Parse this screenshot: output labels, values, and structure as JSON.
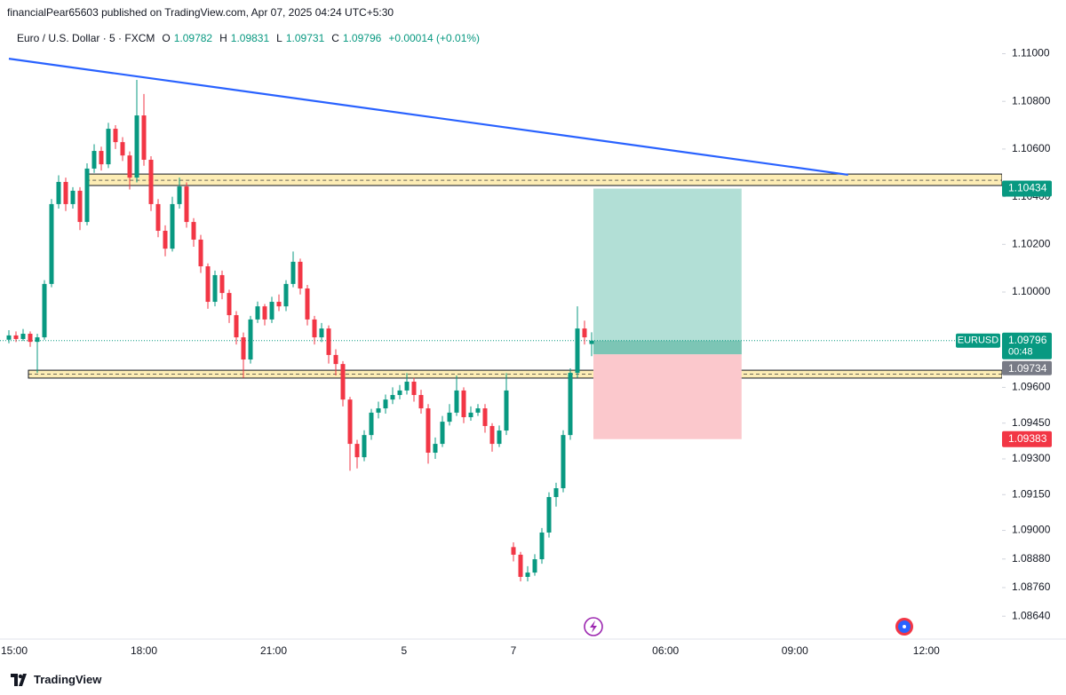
{
  "header": "financialPear65603 published on TradingView.com, Apr 07, 2025 04:24 UTC+5:30",
  "footer": "TradingView",
  "chart_data": {
    "type": "candlestick",
    "symbol": "Euro / U.S. Dollar · 5 · FXCM",
    "ohlc_labels": [
      "O",
      "H",
      "L",
      "C"
    ],
    "change": "+0.00014 (+0.01%)",
    "colors": {
      "up": "#089981",
      "down": "#f23645"
    },
    "open": [
      1.098,
      1.09818,
      1.09803,
      1.09825,
      1.09791,
      1.0981,
      1.10034,
      1.10369,
      1.10462,
      1.10369,
      1.10425,
      1.10294,
      1.10518,
      1.10592,
      1.10536,
      1.10685,
      1.10629,
      1.10573,
      1.1048,
      1.10741,
      1.10555,
      1.10369,
      1.10257,
      1.10182,
      1.10369,
      1.10443,
      1.10294,
      1.1022,
      1.10108,
      1.09959,
      1.10071,
      1.09996,
      1.09903,
      1.0981,
      1.09717,
      1.09885,
      1.0994,
      1.09885,
      1.09959,
      1.0994,
      1.10034,
      1.10127,
      1.10015,
      1.09885,
      1.0981,
      1.09847,
      1.09736,
      1.09698,
      1.09549,
      1.09363,
      1.09307,
      1.094,
      1.09494,
      1.09512,
      1.09549,
      1.09568,
      1.09587,
      1.09624,
      1.09568,
      1.09512,
      1.09326,
      1.09363,
      1.09456,
      1.09494,
      1.09587,
      1.09475,
      1.09494,
      1.09512,
      1.09438,
      1.09363,
      1.09419,
      1.0893,
      1.08898,
      1.08805,
      1.08823,
      1.08879,
      1.08991,
      1.0914,
      1.09177,
      1.094,
      1.09661,
      1.09847,
      1.09782
    ],
    "high": [
      1.0984,
      1.09835,
      1.09845,
      1.09835,
      1.09825,
      1.1005,
      1.1039,
      1.1049,
      1.1048,
      1.1044,
      1.1044,
      1.1054,
      1.1062,
      1.1061,
      1.1071,
      1.107,
      1.1065,
      1.1059,
      1.1089,
      1.10831,
      1.1057,
      1.1039,
      1.1028,
      1.104,
      1.1048,
      1.1046,
      1.1031,
      1.1024,
      1.1012,
      1.1009,
      1.1009,
      1.1001,
      1.0992,
      1.0983,
      1.099,
      1.0996,
      1.0995,
      1.0998,
      1.0999,
      1.1005,
      1.1017,
      1.1014,
      1.1003,
      1.099,
      1.0987,
      1.0986,
      1.0976,
      1.0971,
      1.0956,
      1.0938,
      1.0942,
      1.0951,
      1.0954,
      1.0957,
      1.096,
      1.0961,
      1.0966,
      1.0964,
      1.0959,
      1.0953,
      1.0939,
      1.0948,
      1.0953,
      1.0965,
      1.096,
      1.0952,
      1.0953,
      1.0953,
      1.0945,
      1.0944,
      1.0966,
      1.0895,
      1.0891,
      1.0885,
      1.089,
      1.0901,
      1.0916,
      1.092,
      1.0942,
      1.0968,
      1.0994,
      1.0988,
      1.09831
    ],
    "low": [
      1.09785,
      1.0979,
      1.09795,
      1.0977,
      1.09661,
      1.098,
      1.1002,
      1.1035,
      1.1034,
      1.1035,
      1.1026,
      1.1028,
      1.105,
      1.1051,
      1.1052,
      1.106,
      1.1055,
      1.1043,
      1.1046,
      1.1053,
      1.1034,
      1.1023,
      1.1015,
      1.1017,
      1.1035,
      1.1027,
      1.1019,
      1.1008,
      1.0993,
      1.0994,
      1.0997,
      1.0987,
      1.0978,
      1.0964,
      1.097,
      1.0987,
      1.0986,
      1.0987,
      1.0992,
      1.0992,
      1.1002,
      1.0999,
      1.0986,
      1.0978,
      1.0979,
      1.097,
      1.0965,
      1.0952,
      1.0925,
      1.0926,
      1.0929,
      1.0938,
      1.0947,
      1.0949,
      1.0953,
      1.0955,
      1.0957,
      1.0954,
      1.0949,
      1.0928,
      1.093,
      1.0935,
      1.0944,
      1.0948,
      1.0945,
      1.0946,
      1.0948,
      1.0941,
      1.0933,
      1.0935,
      1.094,
      1.0887,
      1.08786,
      1.08786,
      1.0881,
      1.0886,
      1.0897,
      1.091,
      1.0916,
      1.0938,
      1.0964,
      1.0978,
      1.09731
    ],
    "close": [
      1.09818,
      1.09803,
      1.09825,
      1.09791,
      1.0981,
      1.10034,
      1.10369,
      1.10462,
      1.10369,
      1.10425,
      1.10294,
      1.10518,
      1.10592,
      1.10536,
      1.10685,
      1.10629,
      1.10573,
      1.1048,
      1.10741,
      1.10555,
      1.10369,
      1.10257,
      1.10182,
      1.10369,
      1.10443,
      1.10294,
      1.1022,
      1.10108,
      1.09959,
      1.10071,
      1.09996,
      1.09903,
      1.0981,
      1.09717,
      1.09885,
      1.0994,
      1.09885,
      1.09959,
      1.0994,
      1.10034,
      1.10127,
      1.10015,
      1.09885,
      1.0981,
      1.09847,
      1.09736,
      1.09698,
      1.09549,
      1.09363,
      1.09307,
      1.094,
      1.09494,
      1.09512,
      1.09549,
      1.09568,
      1.09587,
      1.09624,
      1.09568,
      1.09512,
      1.09326,
      1.09363,
      1.09456,
      1.09494,
      1.09587,
      1.09475,
      1.09494,
      1.09512,
      1.09438,
      1.09363,
      1.09419,
      1.09587,
      1.08898,
      1.08805,
      1.08823,
      1.08879,
      1.08991,
      1.0914,
      1.09177,
      1.094,
      1.09661,
      1.09847,
      1.0981,
      1.09796
    ],
    "xlim": [
      -1.25,
      139.75
    ],
    "xticks": [
      {
        "value": 0.75,
        "label": "15:00"
      },
      {
        "value": 19,
        "label": "18:00"
      },
      {
        "value": 37.25,
        "label": "21:00"
      },
      {
        "value": 55.6,
        "label": "5"
      },
      {
        "value": 71,
        "label": "7"
      },
      {
        "value": 92.4,
        "label": "06:00"
      },
      {
        "value": 110.6,
        "label": "09:00"
      },
      {
        "value": 129.1,
        "label": "12:00"
      }
    ],
    "ylim": [
      1.08544,
      1.11121
    ],
    "yticks": [
      {
        "value": 1.11,
        "label": "1.11000"
      },
      {
        "value": 1.108,
        "label": "1.10800"
      },
      {
        "value": 1.106,
        "label": "1.10600"
      },
      {
        "value": 1.104,
        "label": "1.10400"
      },
      {
        "value": 1.102,
        "label": "1.10200"
      },
      {
        "value": 1.1,
        "label": "1.10000"
      },
      {
        "value": 1.096,
        "label": "1.09600"
      },
      {
        "value": 1.0945,
        "label": "1.09450"
      },
      {
        "value": 1.093,
        "label": "1.09300"
      },
      {
        "value": 1.0915,
        "label": "1.09150"
      },
      {
        "value": 1.09,
        "label": "1.09000"
      },
      {
        "value": 1.0888,
        "label": "1.08880"
      },
      {
        "value": 1.0876,
        "label": "1.08760"
      },
      {
        "value": 1.0864,
        "label": "1.08640"
      }
    ],
    "grid": false,
    "trendline": {
      "x": [
        0,
        118.1
      ],
      "y": [
        1.10979,
        1.10492
      ],
      "color": "#2962ff"
    },
    "zones": [
      {
        "x0": 10.9,
        "y": [
          1.10447,
          1.10495
        ],
        "mid": 1.10469
      },
      {
        "x0": 2.75,
        "y": [
          1.09639,
          1.09672
        ],
        "mid": 1.09655
      }
    ],
    "position": {
      "x": [
        82.25,
        103.1
      ],
      "entry": 1.09739,
      "target": 1.10434,
      "stop": 1.09383
    },
    "symbol_tag": "EURUSD",
    "countdown": "00:48",
    "level": 1.09734
  }
}
